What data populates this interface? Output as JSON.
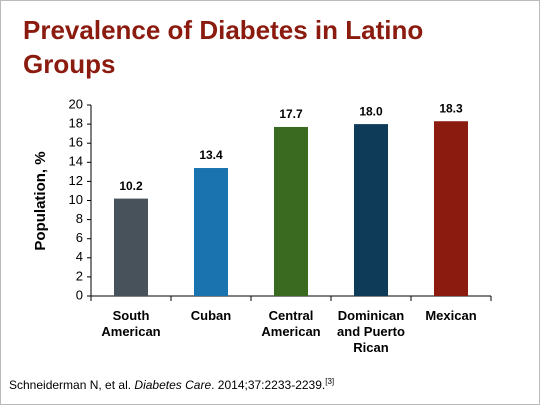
{
  "chart_data": {
    "type": "bar",
    "title": "Prevalence of Diabetes in Latino Groups",
    "y_label": "Population, %",
    "categories": [
      "South American",
      "Cuban",
      "Central American",
      "Dominican and Puerto Rican",
      "Mexican"
    ],
    "values": [
      10.2,
      13.4,
      17.7,
      18.0,
      18.3
    ],
    "value_labels": [
      "10.2",
      "13.4",
      "17.7",
      "18.0",
      "18.3"
    ],
    "colors": [
      "#48525a",
      "#1a72ae",
      "#3a6a1f",
      "#0e3b58",
      "#8b1a0f"
    ],
    "ylim": [
      0,
      20
    ],
    "yticks": [
      0,
      2,
      4,
      6,
      8,
      10,
      12,
      14,
      16,
      18,
      20
    ],
    "grid": false,
    "citation": {
      "authors": "Schneiderman N, et al. ",
      "journal": "Diabetes Care",
      "details": ". 2014;37:2233-2239.",
      "ref": "[3]"
    }
  }
}
